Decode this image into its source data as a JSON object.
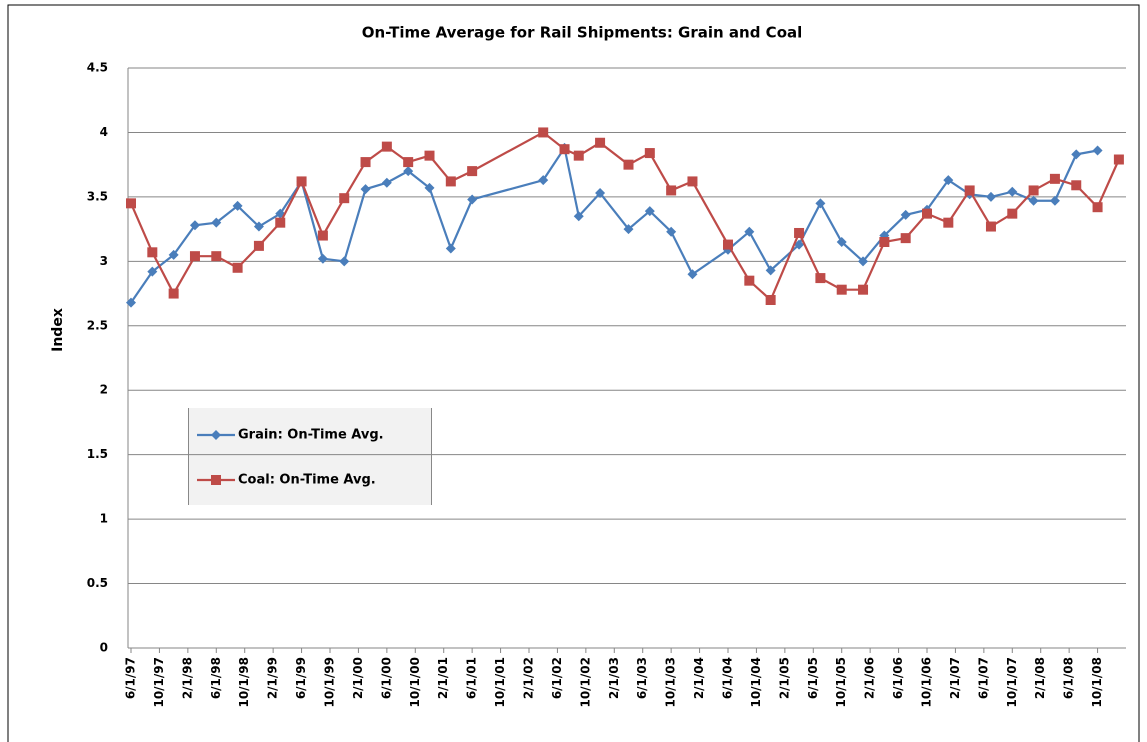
{
  "chart_data": {
    "type": "line",
    "title": "On-Time Average for Rail Shipments: Grain and Coal",
    "y_label": "Index",
    "x": [
      "6/1/97",
      "9/1/97",
      "12/1/97",
      "3/1/98",
      "6/1/98",
      "9/1/98",
      "12/1/98",
      "3/1/99",
      "6/1/99",
      "9/1/99",
      "12/1/99",
      "3/1/00",
      "6/1/00",
      "9/1/00",
      "12/1/00",
      "3/1/01",
      "6/1/01",
      "4/1/02",
      "7/1/02",
      "9/1/02",
      "12/1/02",
      "4/1/03",
      "7/1/03",
      "10/1/03",
      "1/1/04",
      "6/1/04",
      "9/1/04",
      "12/1/04",
      "4/1/05",
      "7/1/05",
      "10/1/05",
      "1/1/06",
      "4/1/06",
      "7/1/06",
      "10/1/06",
      "1/1/07",
      "4/1/07",
      "7/1/07",
      "10/1/07",
      "1/1/08",
      "4/1/08",
      "7/1/08",
      "10/1/08",
      "1/1/09"
    ],
    "series": [
      {
        "name": "Grain: On-Time Avg.",
        "color": "#4a7ebb",
        "marker": "diamond",
        "values": [
          2.68,
          2.92,
          3.05,
          3.28,
          3.3,
          3.43,
          3.27,
          3.37,
          3.62,
          3.02,
          3.0,
          3.56,
          3.61,
          3.7,
          3.57,
          3.1,
          3.48,
          3.63,
          3.88,
          3.35,
          3.53,
          3.25,
          3.39,
          3.23,
          2.9,
          3.09,
          3.23,
          2.93,
          3.13,
          3.45,
          3.15,
          3.0,
          3.2,
          3.36,
          3.4,
          3.63,
          3.52,
          3.5,
          3.54,
          3.47,
          3.47,
          3.83,
          3.86,
          null
        ]
      },
      {
        "name": "Coal: On-Time Avg.",
        "color": "#be4b48",
        "marker": "square",
        "values": [
          3.45,
          3.07,
          2.75,
          3.04,
          3.04,
          2.95,
          3.12,
          3.3,
          3.62,
          3.2,
          3.49,
          3.77,
          3.89,
          3.77,
          3.82,
          3.62,
          3.7,
          4.0,
          3.87,
          3.82,
          3.92,
          3.75,
          3.84,
          3.55,
          3.62,
          3.13,
          2.85,
          2.7,
          3.22,
          2.87,
          2.78,
          2.78,
          3.15,
          3.18,
          3.37,
          3.3,
          3.55,
          3.27,
          3.37,
          3.55,
          3.64,
          3.59,
          3.42,
          3.79
        ]
      }
    ],
    "xlim": [
      "6/1/97",
      "2/1/09"
    ],
    "xticks": [
      "6/1/97",
      "10/1/97",
      "2/1/98",
      "6/1/98",
      "10/1/98",
      "2/1/99",
      "6/1/99",
      "10/1/99",
      "2/1/00",
      "6/1/00",
      "10/1/00",
      "2/1/01",
      "6/1/01",
      "10/1/01",
      "2/1/02",
      "6/1/02",
      "10/1/02",
      "2/1/03",
      "6/1/03",
      "10/1/03",
      "2/1/04",
      "6/1/04",
      "10/1/04",
      "2/1/05",
      "6/1/05",
      "10/1/05",
      "2/1/06",
      "6/1/06",
      "10/1/06",
      "2/1/07",
      "6/1/07",
      "10/1/07",
      "2/1/08",
      "6/1/08",
      "10/1/08"
    ],
    "ylim": [
      0,
      4.5
    ],
    "yticks": [
      0,
      0.5,
      1,
      1.5,
      2,
      2.5,
      3,
      3.5,
      4,
      4.5
    ],
    "grid": true
  }
}
